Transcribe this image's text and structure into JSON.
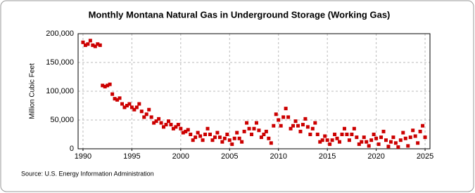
{
  "chart_data": {
    "type": "scatter",
    "title": "Monthly Montana Natural Gas in Underground Storage (Working Gas)",
    "y_label": "Million Cubic Feet",
    "source": "Source: U.S. Energy Information Administration",
    "color": "#cc0000",
    "grid": true,
    "xlim": [
      1989.5,
      2025.5
    ],
    "xticks": [
      1990,
      1995,
      2000,
      2005,
      2010,
      2015,
      2020,
      2025
    ],
    "ylim": [
      0,
      200000
    ],
    "yticks": [
      0,
      {
        "value": 50000,
        "label": "50,000"
      },
      {
        "value": 100000,
        "label": "100,000"
      },
      {
        "value": 150000,
        "label": "150,000"
      },
      {
        "value": 200000,
        "label": "200,000"
      }
    ],
    "x": [
      1990,
      1990.25,
      1990.5,
      1990.75,
      1991,
      1991.25,
      1991.5,
      1991.75,
      1992,
      1992.25,
      1992.5,
      1992.75,
      1993,
      1993.25,
      1993.5,
      1993.75,
      1994,
      1994.25,
      1994.5,
      1994.75,
      1995,
      1995.25,
      1995.5,
      1995.75,
      1996,
      1996.25,
      1996.5,
      1996.75,
      1997,
      1997.25,
      1997.5,
      1997.75,
      1998,
      1998.25,
      1998.5,
      1998.75,
      1999,
      1999.25,
      1999.5,
      1999.75,
      2000,
      2000.25,
      2000.5,
      2000.75,
      2001,
      2001.25,
      2001.5,
      2001.75,
      2002,
      2002.25,
      2002.5,
      2002.75,
      2003,
      2003.25,
      2003.5,
      2003.75,
      2004,
      2004.25,
      2004.5,
      2004.75,
      2005,
      2005.25,
      2005.5,
      2005.75,
      2006,
      2006.25,
      2006.5,
      2006.75,
      2007,
      2007.25,
      2007.5,
      2007.75,
      2008,
      2008.25,
      2008.5,
      2008.75,
      2009,
      2009.25,
      2009.5,
      2009.75,
      2010,
      2010.25,
      2010.5,
      2010.75,
      2011,
      2011.25,
      2011.5,
      2011.75,
      2012,
      2012.25,
      2012.5,
      2012.75,
      2013,
      2013.25,
      2013.5,
      2013.75,
      2014,
      2014.25,
      2014.5,
      2014.75,
      2015,
      2015.25,
      2015.5,
      2015.75,
      2016,
      2016.25,
      2016.5,
      2016.75,
      2017,
      2017.25,
      2017.5,
      2017.75,
      2018,
      2018.25,
      2018.5,
      2018.75,
      2019,
      2019.25,
      2019.5,
      2019.75,
      2020,
      2020.25,
      2020.5,
      2020.75,
      2021,
      2021.25,
      2021.5,
      2021.75,
      2022,
      2022.25,
      2022.5,
      2022.75,
      2023,
      2023.25,
      2023.5,
      2023.75,
      2024,
      2024.25,
      2024.5,
      2024.75,
      2025
    ],
    "values": [
      185000,
      180000,
      182000,
      188000,
      180000,
      178000,
      182000,
      180000,
      110000,
      108000,
      110000,
      112000,
      95000,
      87000,
      85000,
      88000,
      78000,
      72000,
      75000,
      78000,
      72000,
      68000,
      72000,
      78000,
      65000,
      55000,
      60000,
      68000,
      55000,
      45000,
      48000,
      52000,
      45000,
      38000,
      42000,
      48000,
      42000,
      35000,
      38000,
      42000,
      35000,
      28000,
      30000,
      33000,
      25000,
      15000,
      20000,
      28000,
      22000,
      15000,
      25000,
      35000,
      25000,
      15000,
      20000,
      28000,
      20000,
      12000,
      18000,
      25000,
      15000,
      8000,
      18000,
      28000,
      18000,
      12000,
      30000,
      45000,
      35000,
      25000,
      35000,
      45000,
      32000,
      20000,
      25000,
      30000,
      18000,
      10000,
      40000,
      60000,
      50000,
      40000,
      55000,
      70000,
      55000,
      35000,
      40000,
      48000,
      40000,
      30000,
      42000,
      52000,
      38000,
      25000,
      35000,
      45000,
      25000,
      12000,
      15000,
      22000,
      15000,
      8000,
      15000,
      25000,
      18000,
      12000,
      25000,
      35000,
      25000,
      15000,
      25000,
      35000,
      20000,
      8000,
      12000,
      20000,
      12000,
      5000,
      15000,
      25000,
      18000,
      8000,
      20000,
      30000,
      15000,
      4000,
      12000,
      20000,
      10000,
      3000,
      15000,
      28000,
      18000,
      5000,
      20000,
      32000,
      22000,
      10000,
      30000,
      40000,
      20000
    ]
  }
}
